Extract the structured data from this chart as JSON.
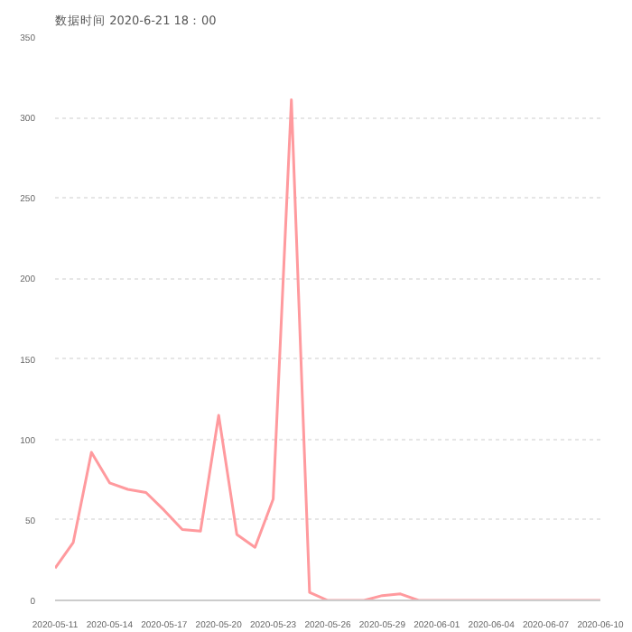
{
  "chart_data": {
    "type": "line",
    "title": "数据时间 2020-6-21 18：00",
    "x": [
      "2020-05-11",
      "2020-05-12",
      "2020-05-13",
      "2020-05-14",
      "2020-05-15",
      "2020-05-16",
      "2020-05-17",
      "2020-05-18",
      "2020-05-19",
      "2020-05-20",
      "2020-05-21",
      "2020-05-22",
      "2020-05-23",
      "2020-05-24",
      "2020-05-25",
      "2020-05-26",
      "2020-05-27",
      "2020-05-28",
      "2020-05-29",
      "2020-05-30",
      "2020-05-31",
      "2020-06-01",
      "2020-06-02",
      "2020-06-03",
      "2020-06-04",
      "2020-06-05",
      "2020-06-06",
      "2020-06-07",
      "2020-06-08",
      "2020-06-09",
      "2020-06-10"
    ],
    "series": [
      {
        "color": "#ff9a9e",
        "values": [
          20,
          36,
          92,
          73,
          69,
          67,
          56,
          44,
          43,
          115,
          41,
          33,
          63,
          311,
          5,
          0,
          0,
          0,
          3,
          4,
          0,
          0,
          0,
          0,
          0,
          0,
          0,
          0,
          0,
          0,
          0
        ]
      }
    ],
    "ylim": [
      0,
      350
    ],
    "yticks": [
      0,
      50,
      100,
      150,
      200,
      250,
      300,
      350
    ],
    "xticks": [
      "2020-05-11",
      "2020-05-14",
      "2020-05-17",
      "2020-05-20",
      "2020-05-23",
      "2020-05-26",
      "2020-05-29",
      "2020-06-01",
      "2020-06-04",
      "2020-06-07",
      "2020-06-10"
    ],
    "xlim": [
      "2020-05-11",
      "2020-06-10"
    ],
    "grid": "y",
    "marker": "none",
    "line_style": "solid"
  }
}
